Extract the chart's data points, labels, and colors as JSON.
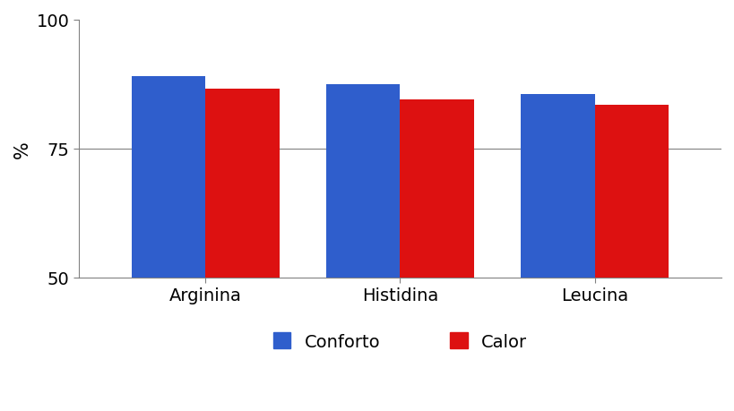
{
  "categories": [
    "Arginina",
    "Histidina",
    "Leucina"
  ],
  "conforto_values": [
    89.0,
    87.5,
    85.5
  ],
  "calor_values": [
    86.5,
    84.5,
    83.5
  ],
  "conforto_color": "#2F5ECC",
  "calor_color": "#DD1111",
  "ylabel": "%",
  "ylim": [
    50,
    100
  ],
  "yticks": [
    50,
    75,
    100
  ],
  "legend_labels": [
    "Conforto",
    "Calor"
  ],
  "bar_width": 0.38,
  "legend_fontsize": 14,
  "tick_fontsize": 14,
  "ylabel_fontsize": 15,
  "background_color": "#ffffff"
}
